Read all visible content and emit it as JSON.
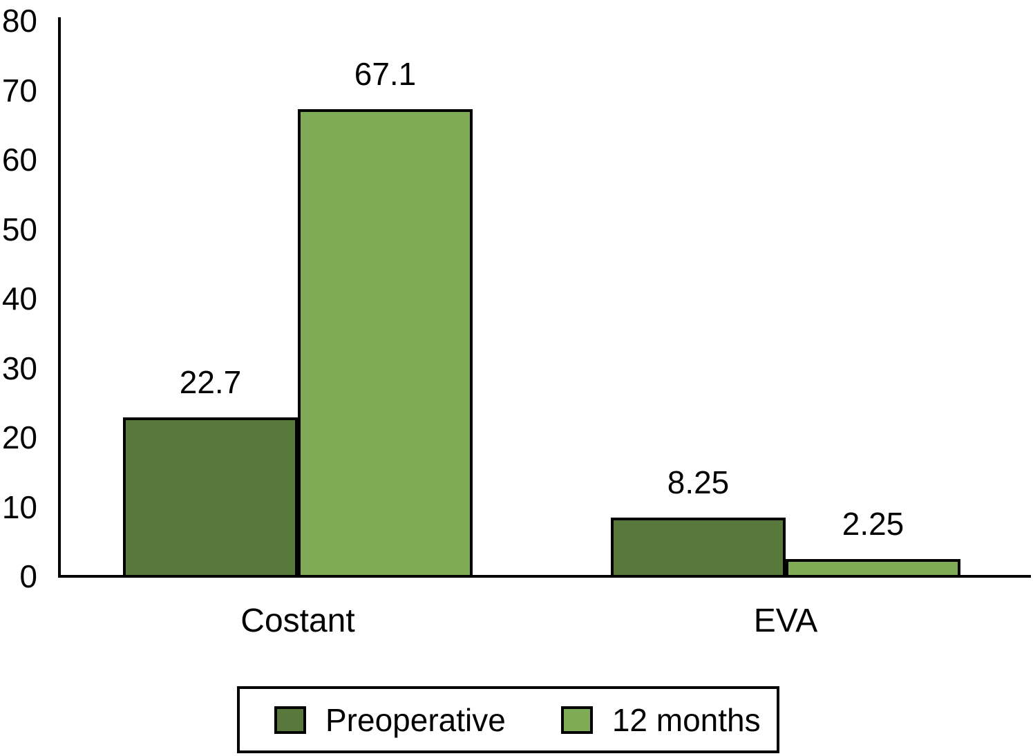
{
  "chart_data": {
    "type": "bar",
    "categories": [
      "Costant",
      "EVA"
    ],
    "series": [
      {
        "name": "Preoperative",
        "color": "#58783c",
        "values": [
          22.7,
          8.25
        ]
      },
      {
        "name": "12 months",
        "color": "#7fab57",
        "values": [
          67.1,
          2.25
        ]
      }
    ],
    "title": "",
    "xlabel": "",
    "ylabel": "",
    "ylim": [
      0,
      80
    ],
    "yticks": [
      0,
      10,
      20,
      30,
      40,
      50,
      60,
      70,
      80
    ],
    "grid": false,
    "legend_position": "bottom",
    "bar_edge_color": "#000000",
    "axis_color": "#000000",
    "value_labels_shown": true
  }
}
